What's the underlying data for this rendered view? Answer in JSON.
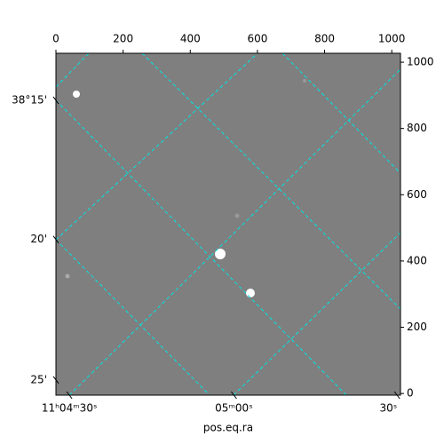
{
  "chart_data": {
    "type": "image",
    "xlabel": "pos.eq.ra",
    "xlim": [
      0,
      1026
    ],
    "xticks": [
      0,
      200,
      400,
      600,
      800,
      1000
    ],
    "ylim": [
      -5,
      1027
    ],
    "yticks": [
      0,
      200,
      400,
      600,
      800,
      1000
    ],
    "ra_ticks": [
      {
        "value": 40,
        "label": "11ʰ04ᵐ30ˢ"
      },
      {
        "value": 530,
        "label": "05ᵐ00ˢ"
      },
      {
        "value": 1016,
        "label": "30ˢ"
      }
    ],
    "dec_ticks": [
      {
        "value": 885,
        "label": "38°15'"
      },
      {
        "value": 465,
        "label": "20'"
      },
      {
        "value": 41,
        "label": "25'"
      }
    ],
    "grid": true,
    "grid_color": "#00e5e5"
  }
}
